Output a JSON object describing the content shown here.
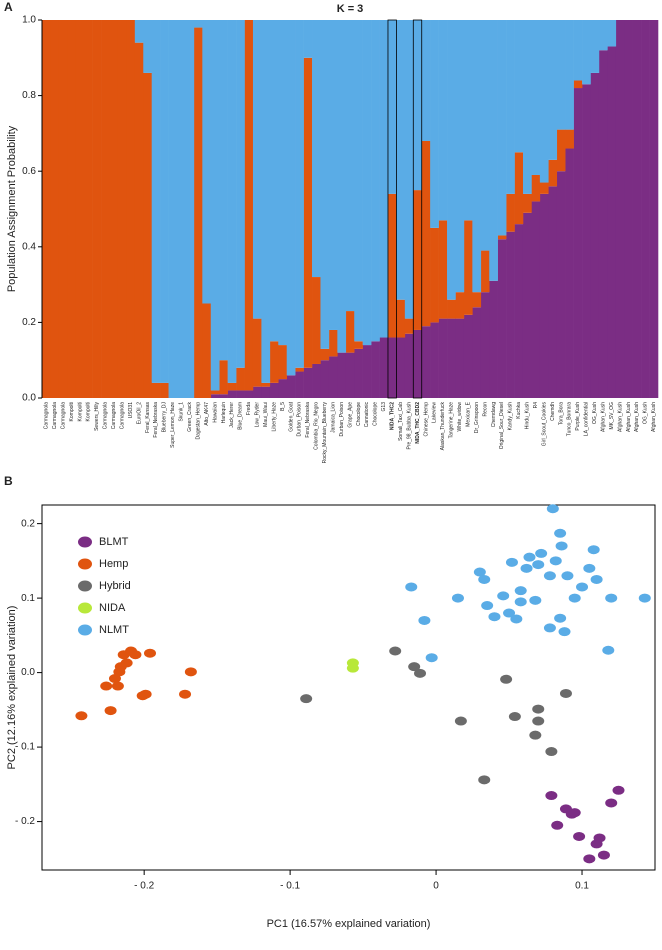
{
  "chart_data": [
    {
      "type": "bar",
      "stacked": true,
      "panel": "A",
      "title": "K = 3",
      "ylabel": "Population Assignment Probability",
      "categories": [
        "Carmagnola",
        "Carmagnola",
        "Carmagnola",
        "Kompolti",
        "Kompolti",
        "Kompolti",
        "Sewers_Hilly",
        "Carmagnola",
        "Carmagnola",
        "Carmagnola",
        "USO31",
        "EuroOil_2",
        "Feral_Kansas",
        "Feral_Nebraska",
        "Blueberry_DJ",
        "Super_Lemon_Haze",
        "Skunk_1",
        "Green_Crack",
        "Dagestan_Hemp",
        "Alto_AK47",
        "Hawaiian",
        "Harlequin",
        "Jack_Herer",
        "Blue_Dream",
        "Freda",
        "Low_Ryder",
        "Maui_Waui",
        "Liberty_Haze",
        "B_5",
        "Golden_Goat",
        "Durban_Poison",
        "Feral_Nebraska",
        "Colombia_Rio_Negro",
        "Rocky_Mountain_Blueberry",
        "Jamaica_Lion",
        "Durban_Poison",
        "Grape_Ape",
        "Chocolope",
        "Cannatonic",
        "Chocolope",
        "G13",
        "NIDA_THC2",
        "Somali_Taxi_Cab",
        "Pre_98_Bubba_Kush",
        "NIDA_THC_CBD2",
        "Chinese_Hemp",
        "Lakeview",
        "Alaskan_Thunderfuck",
        "Tangerine_Haze",
        "White_widow",
        "Mexican_E",
        "Dr_Grinspoon",
        "Recon",
        "Chemdawg",
        "Original_Sour_Diesel",
        "Kandy_Kush",
        "Kuchka",
        "Hindu_Kush",
        "R4",
        "Girl_Scout_Cookies",
        "Chemdh",
        "Tora_Bora",
        "Tunco_Bonrara",
        "Purple_Kush",
        "LA_confidential",
        "OG_Kush",
        "Afghan_Kush",
        "MK_SV_OG",
        "Afghan_Kush",
        "Afghan_Kush",
        "Afghan_Kush",
        "OG_Kush",
        "Afghan_Kush"
      ],
      "series": [
        {
          "color": "#7b2d84",
          "values": [
            0,
            0,
            0,
            0,
            0,
            0,
            0,
            0,
            0,
            0,
            0,
            0,
            0,
            0,
            0,
            0,
            0,
            0,
            0,
            0,
            0.01,
            0.01,
            0.02,
            0.02,
            0.02,
            0.03,
            0.03,
            0.04,
            0.05,
            0.06,
            0.07,
            0.08,
            0.09,
            0.1,
            0.11,
            0.12,
            0.12,
            0.13,
            0.14,
            0.15,
            0.16,
            0.16,
            0.16,
            0.17,
            0.18,
            0.19,
            0.2,
            0.21,
            0.21,
            0.21,
            0.22,
            0.24,
            0.28,
            0.31,
            0.42,
            0.44,
            0.46,
            0.49,
            0.52,
            0.54,
            0.56,
            0.6,
            0.66,
            0.82,
            0.83,
            0.86,
            0.92,
            0.93,
            1,
            1,
            1,
            1,
            1
          ]
        },
        {
          "color": "#e0540f",
          "values": [
            1,
            1,
            1,
            1,
            1,
            1,
            1,
            1,
            1,
            1,
            1,
            0.94,
            0.86,
            0.04,
            0.04,
            0,
            0,
            0,
            0.98,
            0.25,
            0.01,
            0.09,
            0.02,
            0.06,
            0.98,
            0.18,
            0.01,
            0.11,
            0.09,
            0,
            0.01,
            0.82,
            0.23,
            0.03,
            0.07,
            0,
            0.11,
            0.02,
            0,
            0,
            0,
            0.38,
            0.1,
            0.04,
            0.37,
            0.49,
            0.25,
            0.26,
            0.05,
            0.07,
            0.25,
            0.04,
            0.11,
            0,
            0.01,
            0.1,
            0.19,
            0.05,
            0.07,
            0.03,
            0.07,
            0.11,
            0.05,
            0.02,
            0,
            0,
            0,
            0,
            0,
            0,
            0,
            0,
            0
          ]
        },
        {
          "color": "#5aace6",
          "values": [
            0,
            0,
            0,
            0,
            0,
            0,
            0,
            0,
            0,
            0,
            0,
            0.06,
            0.14,
            0.96,
            0.96,
            1,
            1,
            1,
            0.02,
            0.75,
            0.98,
            0.9,
            0.96,
            0.92,
            0,
            0.79,
            0.96,
            0.85,
            0.86,
            0.94,
            0.92,
            0.1,
            0.68,
            0.87,
            0.82,
            0.88,
            0.77,
            0.85,
            0.86,
            0.85,
            0.84,
            0.46,
            0.74,
            0.79,
            0.45,
            0.32,
            0.55,
            0.53,
            0.74,
            0.72,
            0.53,
            0.72,
            0.61,
            0.69,
            0.57,
            0.46,
            0.35,
            0.46,
            0.41,
            0.43,
            0.37,
            0.29,
            0.29,
            0.16,
            0.17,
            0.14,
            0.08,
            0.07,
            0,
            0,
            0,
            0,
            0
          ]
        }
      ],
      "ylim": [
        0,
        1
      ],
      "yticks": [
        {
          "value": 0,
          "label": "0.0"
        },
        0.2,
        0.4,
        0.6,
        0.8,
        {
          "value": 1,
          "label": "1.0"
        }
      ]
    },
    {
      "type": "scatter",
      "panel": "B",
      "xlabel": "PC1 (16.57% explained variation)",
      "ylabel": "PC2 (12.16% explained variation)",
      "xlim": [
        -0.27,
        0.15
      ],
      "ylim": [
        -0.265,
        0.225
      ],
      "xticks": [
        {
          "value": -0.2,
          "label": "- 0.2"
        },
        {
          "value": -0.1,
          "label": "- 0.1"
        },
        0,
        0.1
      ],
      "yticks": [
        {
          "value": -0.2,
          "label": "- 0.2"
        },
        {
          "value": -0.1,
          "label": "- 0.1"
        },
        {
          "value": 0,
          "label": "0.0"
        },
        0.1,
        0.2
      ],
      "legend": "upper left",
      "series": [
        {
          "name": "BLMT",
          "color": "#7b2d84",
          "x": [
            0.079,
            0.083,
            0.089,
            0.093,
            0.095,
            0.098,
            0.105,
            0.11,
            0.112,
            0.115,
            0.12,
            0.125
          ],
          "y": [
            -0.165,
            -0.205,
            -0.183,
            -0.19,
            -0.188,
            -0.22,
            -0.25,
            -0.23,
            -0.222,
            -0.245,
            -0.175,
            -0.158
          ]
        },
        {
          "name": "Hemp",
          "color": "#e0540f",
          "x": [
            -0.243,
            -0.223,
            -0.226,
            -0.22,
            -0.217,
            -0.216,
            -0.214,
            -0.209,
            -0.206,
            -0.212,
            -0.218,
            -0.196,
            -0.201,
            -0.199,
            -0.172,
            -0.168
          ],
          "y": [
            -0.058,
            -0.051,
            -0.018,
            -0.008,
            0.001,
            0.008,
            0.024,
            0.029,
            0.024,
            0.013,
            -0.018,
            0.026,
            -0.031,
            -0.029,
            -0.029,
            0.001
          ]
        },
        {
          "name": "Hybrid",
          "color": "#6b6b6b",
          "x": [
            -0.089,
            -0.028,
            -0.015,
            -0.011,
            0.017,
            0.033,
            0.048,
            0.054,
            0.068,
            0.07,
            0.07,
            0.079,
            0.089
          ],
          "y": [
            -0.035,
            0.029,
            0.008,
            -0.001,
            -0.065,
            -0.144,
            -0.009,
            -0.059,
            -0.084,
            -0.049,
            -0.065,
            -0.106,
            -0.028
          ]
        },
        {
          "name": "NIDA",
          "color": "#b8e83a",
          "x": [
            -0.057,
            -0.057
          ],
          "y": [
            0.013,
            0.006
          ]
        },
        {
          "name": "NLMT",
          "color": "#5aace6",
          "x": [
            -0.017,
            -0.008,
            -0.003,
            0.015,
            0.03,
            0.033,
            0.035,
            0.04,
            0.046,
            0.05,
            0.055,
            0.058,
            0.058,
            0.062,
            0.052,
            0.064,
            0.072,
            0.07,
            0.078,
            0.082,
            0.08,
            0.085,
            0.086,
            0.09,
            0.095,
            0.1,
            0.105,
            0.108,
            0.11,
            0.12,
            0.118,
            0.088,
            0.085,
            0.068,
            0.078,
            0.143
          ],
          "y": [
            0.115,
            0.07,
            0.02,
            0.1,
            0.135,
            0.125,
            0.09,
            0.075,
            0.103,
            0.08,
            0.072,
            0.11,
            0.095,
            0.14,
            0.148,
            0.155,
            0.16,
            0.145,
            0.13,
            0.15,
            0.22,
            0.187,
            0.17,
            0.13,
            0.1,
            0.115,
            0.14,
            0.165,
            0.125,
            0.1,
            0.03,
            0.055,
            0.073,
            0.097,
            0.06,
            0.1
          ]
        }
      ]
    }
  ]
}
